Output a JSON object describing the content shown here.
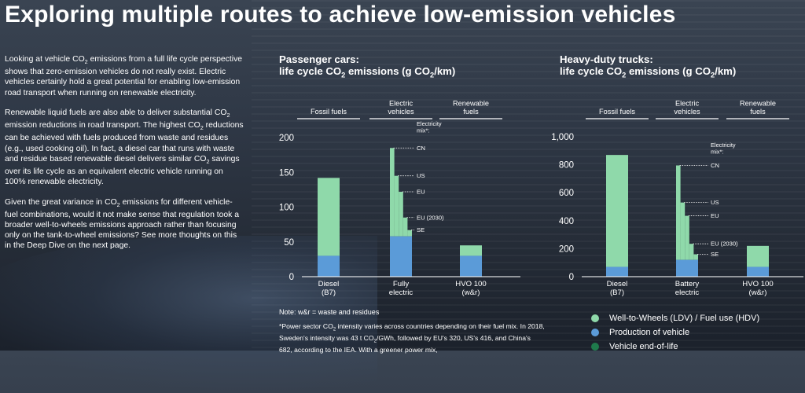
{
  "title": "Exploring multiple routes to achieve low-emission vehicles",
  "intro": {
    "p1_parts": [
      "Looking at vehicle CO",
      "2",
      " emissions from a full life cycle perspective shows that zero-emission vehicles do not really exist. Electric vehicles certainly hold a great potential for enabling low-emission road transport when running on renewable electricity."
    ],
    "p2_parts": [
      "Renewable liquid fuels are also able to deliver substantial CO",
      "2",
      " emission reductions in road transport. The highest CO",
      "2",
      " reductions can be achieved with fuels produced from waste and residues (e.g., used cooking oil). In fact, a diesel car that runs with waste and residue based renewable diesel delivers similar CO",
      "2",
      " savings over its life cycle as an equivalent electric vehicle running on 100% renewable electricity."
    ],
    "p3_parts": [
      "Given the great variance in CO",
      "2",
      " emissions for different vehicle-fuel combinations, would it not make sense that regulation took a broader well-to-wheels emissions approach rather than focusing only on the tank-to-wheel emissions? See more thoughts on this in the Deep Dive on the next page."
    ]
  },
  "colors": {
    "wtw": "#8fd9aa",
    "production": "#5b9bd8",
    "eol": "#1f7a4c"
  },
  "chart_data": [
    {
      "type": "bar",
      "title_line1": "Passenger cars:",
      "title_line2_parts": [
        "life cycle CO",
        "2",
        " emissions (g CO",
        "2",
        "/km)"
      ],
      "groups": [
        "Fossil fuels",
        "Electric\nvehicles",
        "Renewable\nfuels"
      ],
      "categories": [
        "Diesel\n(B7)",
        "Fully\nelectric",
        "HVO 100\n(w&r)"
      ],
      "ylim": [
        0,
        200
      ],
      "yticks": [
        "0",
        "50",
        "100",
        "150",
        "200"
      ],
      "yticks_values": [
        0,
        50,
        100,
        150,
        200
      ],
      "series": [
        {
          "name": "Production of vehicle",
          "values": [
            30,
            58,
            30
          ]
        },
        {
          "name": "Well-to-Wheels (LDV) / Fuel use (HDV)",
          "values": [
            112,
            127,
            15
          ]
        }
      ],
      "electricity_mix_label": "Electricity\nmix*:",
      "electricity_mix": [
        {
          "label": "CN",
          "total": 185
        },
        {
          "label": "US",
          "total": 145
        },
        {
          "label": "EU",
          "total": 122
        },
        {
          "label": "EU (2030)",
          "total": 85
        },
        {
          "label": "SE",
          "total": 67
        }
      ]
    },
    {
      "type": "bar",
      "title_line1": "Heavy-duty trucks:",
      "title_line2_parts": [
        "life cycle CO",
        "2",
        " emissions (g CO",
        "2",
        "/km)"
      ],
      "groups": [
        "Fossil fuels",
        "Electric\nvehicles",
        "Renewable\nfuels"
      ],
      "categories": [
        "Diesel\n(B7)",
        "Battery\nelectric",
        "HVO 100\n(w&r)"
      ],
      "ylim": [
        0,
        1000
      ],
      "yticks": [
        "0",
        "200",
        "400",
        "600",
        "800",
        "1,000"
      ],
      "yticks_values": [
        0,
        200,
        400,
        600,
        800,
        1000
      ],
      "series": [
        {
          "name": "Production of vehicle",
          "values": [
            70,
            120,
            70
          ]
        },
        {
          "name": "Well-to-Wheels (LDV) / Fuel use (HDV)",
          "values": [
            800,
            675,
            150
          ]
        }
      ],
      "electricity_mix_label": "Electricity\nmix*:",
      "electricity_mix": [
        {
          "label": "CN",
          "total": 795
        },
        {
          "label": "US",
          "total": 530
        },
        {
          "label": "EU",
          "total": 435
        },
        {
          "label": "EU (2030)",
          "total": 235
        },
        {
          "label": "SE",
          "total": 160
        }
      ]
    }
  ],
  "footnote": "Note: w&r = waste and residues",
  "footnote2_parts": [
    "*Power sector CO",
    "2",
    " intensity varies across countries depending on their fuel mix. In 2018, Sweden's intensity was 43 t CO",
    "2",
    "/GWh, followed by EU's 320, US's 416, and China's 682, according to the IEA. With a greener power mix,"
  ],
  "legend": [
    {
      "label": "Well-to-Wheels (LDV) / Fuel use (HDV)",
      "color": "#8fd9aa"
    },
    {
      "label": "Production of vehicle",
      "color": "#5b9bd8"
    },
    {
      "label": "Vehicle end-of-life",
      "color": "#1f7a4c"
    }
  ]
}
